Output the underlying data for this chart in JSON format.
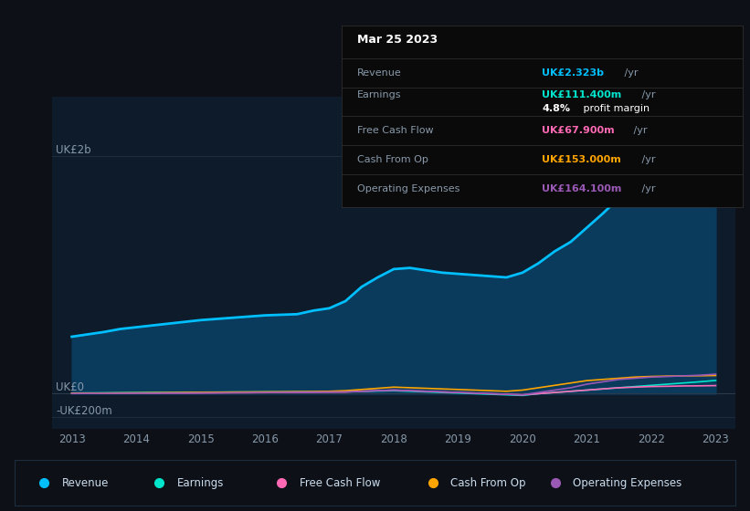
{
  "bg_color": "#0d1117",
  "plot_bg_color": "#0d1b2a",
  "years": [
    2013,
    2013.25,
    2013.5,
    2013.75,
    2014,
    2014.25,
    2014.5,
    2014.75,
    2015,
    2015.25,
    2015.5,
    2015.75,
    2016,
    2016.25,
    2016.5,
    2016.75,
    2017,
    2017.25,
    2017.5,
    2017.75,
    2018,
    2018.25,
    2018.5,
    2018.75,
    2019,
    2019.25,
    2019.5,
    2019.75,
    2020,
    2020.25,
    2020.5,
    2020.75,
    2021,
    2021.25,
    2021.5,
    2021.75,
    2022,
    2022.25,
    2022.5,
    2022.75,
    2023
  ],
  "revenue": [
    480,
    500,
    520,
    545,
    560,
    575,
    590,
    605,
    620,
    630,
    640,
    650,
    660,
    665,
    670,
    700,
    720,
    780,
    900,
    980,
    1050,
    1060,
    1040,
    1020,
    1010,
    1000,
    990,
    980,
    1020,
    1100,
    1200,
    1280,
    1400,
    1520,
    1650,
    1780,
    1900,
    2000,
    2100,
    2200,
    2323
  ],
  "earnings": [
    5,
    6,
    7,
    8,
    9,
    10,
    10,
    11,
    12,
    13,
    14,
    14,
    15,
    15,
    16,
    16,
    17,
    18,
    20,
    22,
    25,
    20,
    15,
    10,
    5,
    0,
    -5,
    -10,
    -15,
    0,
    10,
    20,
    30,
    40,
    50,
    60,
    70,
    80,
    90,
    100,
    111.4
  ],
  "free_cash_flow": [
    2,
    2,
    3,
    3,
    4,
    4,
    5,
    5,
    6,
    7,
    8,
    8,
    9,
    10,
    11,
    12,
    13,
    14,
    20,
    25,
    30,
    25,
    20,
    15,
    10,
    5,
    0,
    -5,
    -10,
    0,
    10,
    20,
    30,
    40,
    50,
    55,
    60,
    62,
    65,
    66,
    67.9
  ],
  "cash_from_op": [
    3,
    4,
    5,
    6,
    7,
    8,
    9,
    10,
    11,
    12,
    13,
    14,
    15,
    16,
    17,
    18,
    20,
    25,
    35,
    45,
    55,
    50,
    45,
    40,
    35,
    30,
    25,
    20,
    30,
    50,
    70,
    90,
    110,
    120,
    130,
    140,
    145,
    148,
    150,
    151,
    153
  ],
  "operating_expenses": [
    1,
    2,
    3,
    3,
    4,
    4,
    5,
    5,
    6,
    7,
    8,
    9,
    10,
    11,
    12,
    13,
    14,
    15,
    20,
    25,
    30,
    25,
    20,
    15,
    10,
    5,
    0,
    -5,
    -10,
    10,
    30,
    50,
    80,
    100,
    120,
    130,
    140,
    145,
    150,
    155,
    164.1
  ],
  "revenue_color": "#00bfff",
  "revenue_fill_color": "#0a3a5c",
  "earnings_color": "#00e5cc",
  "free_cash_flow_color": "#ff69b4",
  "cash_from_op_color": "#ffa500",
  "operating_expenses_color": "#9b59b6",
  "grid_color": "#1e2d3d",
  "text_color": "#8899aa",
  "white_color": "#ffffff",
  "ytick_labels": [
    "UK£2b",
    "UK£0",
    "-UK£200m"
  ],
  "ytick_values": [
    2000,
    0,
    -200
  ],
  "ylim": [
    -300,
    2500
  ],
  "xlim": [
    2012.7,
    2023.3
  ],
  "tooltip": {
    "date": "Mar 25 2023",
    "revenue_label": "Revenue",
    "revenue_value": "UK£2.323b",
    "earnings_label": "Earnings",
    "earnings_value": "UK£111.400m",
    "margin_text": "4.8% profit margin",
    "fcf_label": "Free Cash Flow",
    "fcf_value": "UK£67.900m",
    "cfo_label": "Cash From Op",
    "cfo_value": "UK£153.000m",
    "opex_label": "Operating Expenses",
    "opex_value": "UK£164.100m"
  },
  "legend_items": [
    {
      "label": "Revenue",
      "color": "#00bfff"
    },
    {
      "label": "Earnings",
      "color": "#00e5cc"
    },
    {
      "label": "Free Cash Flow",
      "color": "#ff69b4"
    },
    {
      "label": "Cash From Op",
      "color": "#ffa500"
    },
    {
      "label": "Operating Expenses",
      "color": "#9b59b6"
    }
  ]
}
